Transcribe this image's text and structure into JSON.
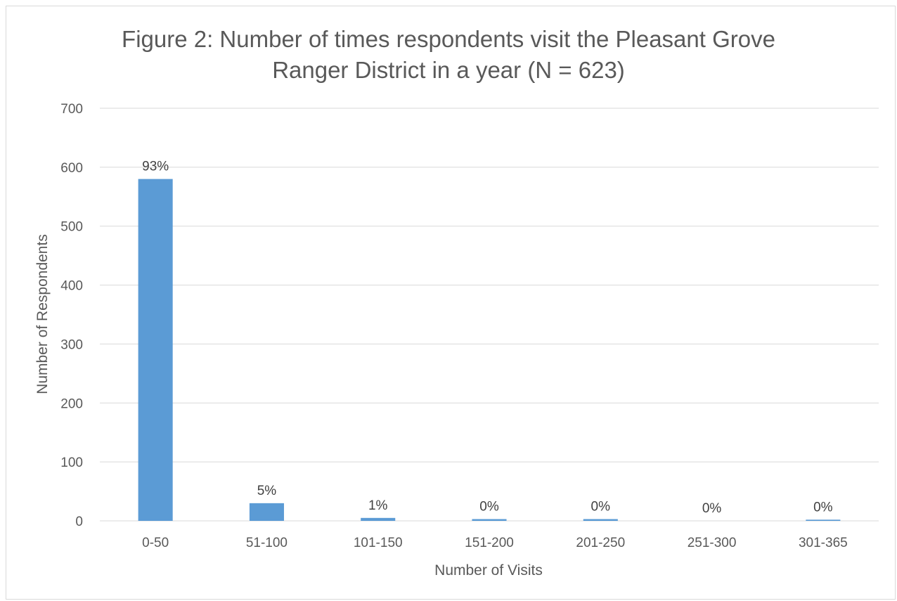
{
  "chart_data": {
    "type": "bar",
    "title_lines": [
      "Figure 2: Number of times respondents visit the Pleasant Grove",
      "Ranger District in a year (N = 623)"
    ],
    "xlabel": "Number of Visits",
    "ylabel": "Number of Respondents",
    "categories": [
      "0-50",
      "51-100",
      "101-150",
      "151-200",
      "201-250",
      "251-300",
      "301-365"
    ],
    "values": [
      580,
      30,
      5,
      3,
      3,
      0,
      2
    ],
    "data_labels": [
      "93%",
      "5%",
      "1%",
      "0%",
      "0%",
      "0%",
      "0%"
    ],
    "ylim": [
      0,
      700
    ],
    "yticks": [
      0,
      100,
      200,
      300,
      400,
      500,
      600,
      700
    ],
    "grid": true,
    "legend": "none",
    "bar_color": "#5b9bd5",
    "grid_color": "#d9d9d9"
  }
}
